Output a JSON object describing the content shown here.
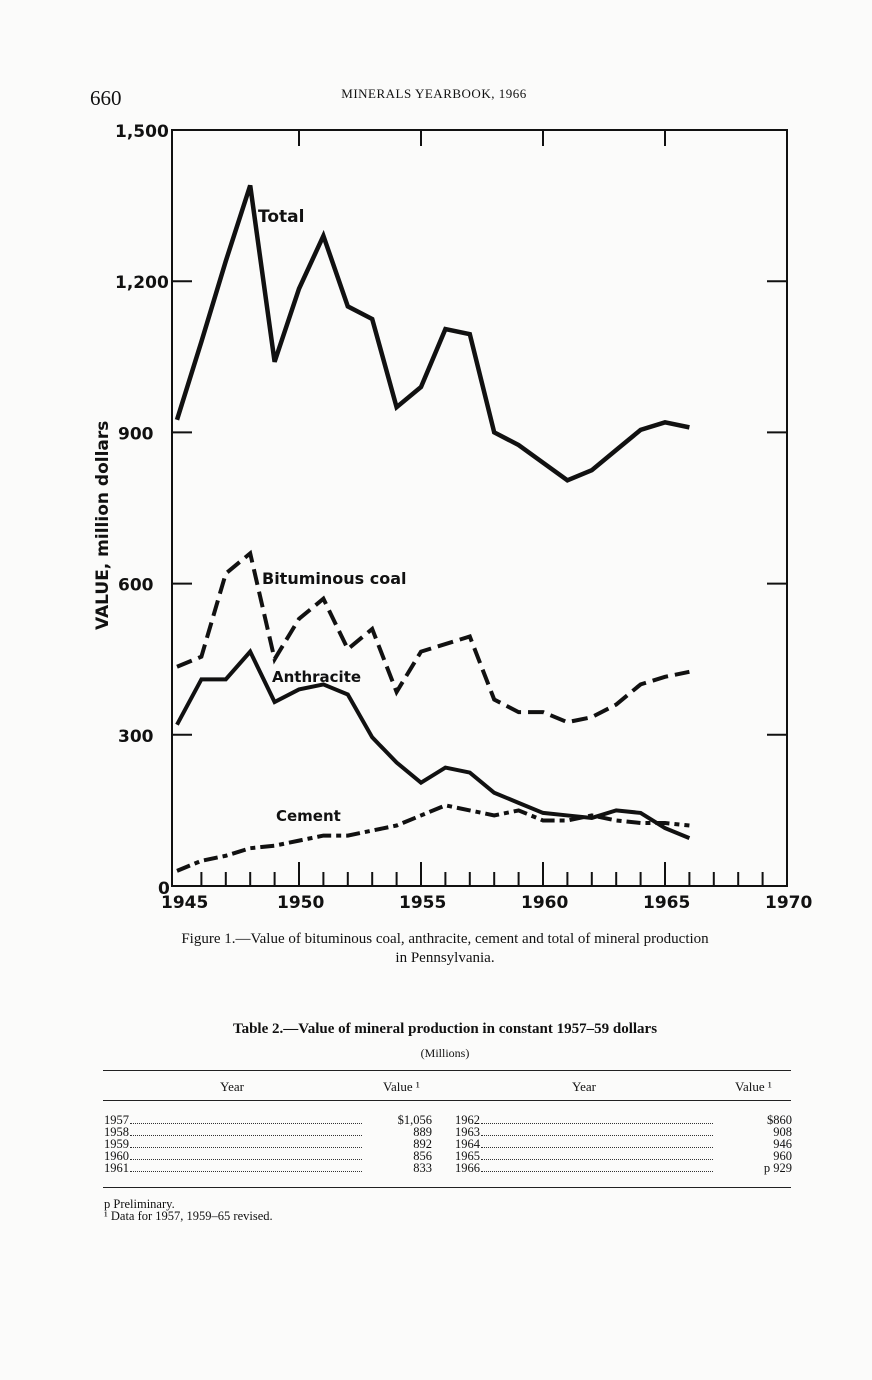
{
  "header": {
    "page_number": "660",
    "running_head": "MINERALS YEARBOOK, 1966"
  },
  "chart_data": {
    "type": "line",
    "title": "",
    "xlabel": "",
    "ylabel": "VALUE, million dollars",
    "xlim": [
      1945,
      1970
    ],
    "ylim": [
      0,
      1500
    ],
    "x_ticks": [
      "1945",
      "1950",
      "1955",
      "1960",
      "1965",
      "1970"
    ],
    "y_ticks": [
      "0",
      "300",
      "600",
      "900",
      "1,200",
      "1,500"
    ],
    "x_tick_values": [
      1945,
      1950,
      1955,
      1960,
      1965,
      1970
    ],
    "y_tick_values": [
      0,
      300,
      600,
      900,
      1200,
      1500
    ],
    "grid": false,
    "x": [
      1945,
      1946,
      1947,
      1948,
      1949,
      1950,
      1951,
      1952,
      1953,
      1954,
      1955,
      1956,
      1957,
      1958,
      1959,
      1960,
      1961,
      1962,
      1963,
      1964,
      1965,
      1966
    ],
    "series": [
      {
        "name": "Total",
        "style": "solid",
        "values": [
          925,
          1080,
          1240,
          1390,
          1040,
          1185,
          1290,
          1150,
          1125,
          950,
          990,
          1105,
          1095,
          900,
          875,
          840,
          805,
          825,
          865,
          905,
          920,
          910
        ]
      },
      {
        "name": "Bituminous coal",
        "style": "dashed",
        "values": [
          435,
          455,
          620,
          660,
          450,
          530,
          570,
          470,
          510,
          385,
          465,
          480,
          495,
          370,
          345,
          345,
          325,
          335,
          360,
          400,
          415,
          425
        ]
      },
      {
        "name": "Anthracite",
        "style": "solid",
        "values": [
          320,
          410,
          410,
          465,
          365,
          390,
          400,
          380,
          295,
          245,
          205,
          235,
          225,
          185,
          165,
          145,
          140,
          135,
          150,
          145,
          115,
          95
        ]
      },
      {
        "name": "Cement",
        "style": "dash-dot",
        "values": [
          30,
          50,
          60,
          75,
          80,
          90,
          100,
          100,
          110,
          120,
          140,
          160,
          150,
          140,
          150,
          130,
          130,
          140,
          130,
          125,
          125,
          120
        ]
      }
    ]
  },
  "caption": {
    "line1": "Figure 1.—Value of bituminous coal, anthracite, cement and total of mineral production",
    "line2": "in Pennsylvania."
  },
  "table": {
    "title": "Table 2.—Value of mineral production in constant 1957–59 dollars",
    "subtitle": "(Millions)",
    "headers": {
      "year": "Year",
      "value": "Value ¹"
    },
    "left_rows": [
      {
        "year": "1957",
        "value": "$1,056"
      },
      {
        "year": "1958",
        "value": "889"
      },
      {
        "year": "1959",
        "value": "892"
      },
      {
        "year": "1960",
        "value": "856"
      },
      {
        "year": "1961",
        "value": "833"
      }
    ],
    "right_rows": [
      {
        "year": "1962",
        "value": "$860"
      },
      {
        "year": "1963",
        "value": "908"
      },
      {
        "year": "1964",
        "value": "946"
      },
      {
        "year": "1965",
        "value": "960"
      },
      {
        "year": "1966",
        "value": "p 929"
      }
    ],
    "footnotes": [
      "p Preliminary.",
      "¹ Data for 1957, 1959–65 revised."
    ]
  }
}
